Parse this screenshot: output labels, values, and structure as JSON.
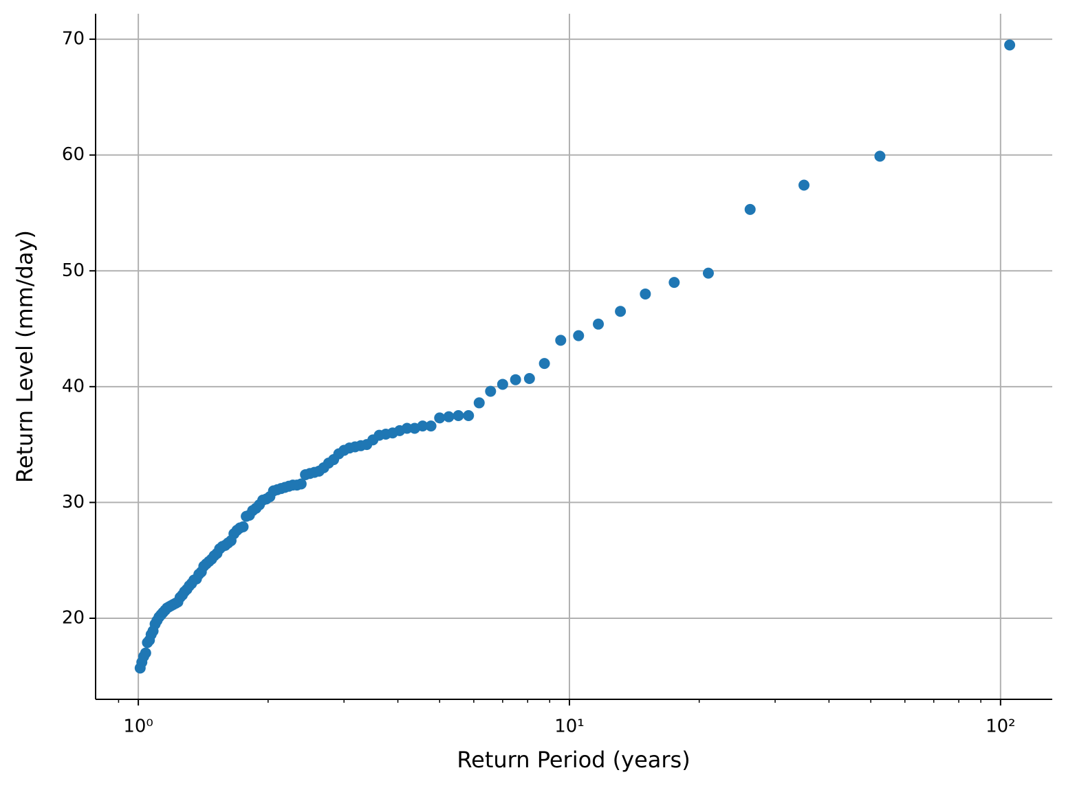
{
  "chart_data": {
    "type": "scatter",
    "xlabel": "Return Period (years)",
    "ylabel": "Return Level (mm/day)",
    "x_scale": "log",
    "grid": true,
    "color": "#1f77b4",
    "xlim": [
      0.796,
      131.8
    ],
    "ylim": [
      13.0,
      72.2
    ],
    "xticks": [
      {
        "value": 1,
        "label": "10⁰"
      },
      {
        "value": 10,
        "label": "10¹"
      },
      {
        "value": 100,
        "label": "10²"
      }
    ],
    "xminorticks": [
      0.9,
      2,
      3,
      4,
      5,
      6,
      7,
      8,
      9,
      20,
      30,
      40,
      50,
      60,
      70,
      80,
      90
    ],
    "yticks": [
      20,
      30,
      40,
      50,
      60,
      70
    ],
    "x": [
      105,
      52.5,
      35,
      26.25,
      21,
      17.5,
      15,
      13.13,
      11.67,
      10.5,
      9.545,
      8.75,
      8.077,
      7.5,
      7,
      6.563,
      6.176,
      5.833,
      5.526,
      5.25,
      5,
      4.773,
      4.565,
      4.375,
      4.2,
      4.038,
      3.889,
      3.75,
      3.621,
      3.5,
      3.387,
      3.281,
      3.182,
      3.088,
      3,
      2.917,
      2.838,
      2.763,
      2.692,
      2.625,
      2.561,
      2.5,
      2.442,
      2.386,
      2.333,
      2.283,
      2.234,
      2.188,
      2.143,
      2.1,
      2.059,
      2.019,
      1.981,
      1.944,
      1.909,
      1.875,
      1.842,
      1.81,
      1.78,
      1.75,
      1.721,
      1.694,
      1.667,
      1.641,
      1.615,
      1.591,
      1.567,
      1.544,
      1.522,
      1.5,
      1.479,
      1.458,
      1.438,
      1.419,
      1.4,
      1.382,
      1.364,
      1.346,
      1.329,
      1.313,
      1.296,
      1.28,
      1.265,
      1.25,
      1.235,
      1.221,
      1.207,
      1.193,
      1.18,
      1.167,
      1.154,
      1.141,
      1.129,
      1.117,
      1.105,
      1.094,
      1.082,
      1.071,
      1.061,
      1.05,
      1.04,
      1.029,
      1.019,
      1.01
    ],
    "values": [
      69.5,
      59.9,
      57.4,
      55.3,
      49.8,
      49.0,
      48.0,
      46.5,
      45.4,
      44.4,
      44.0,
      42.0,
      40.7,
      40.6,
      40.2,
      39.6,
      38.6,
      37.5,
      37.5,
      37.4,
      37.3,
      36.6,
      36.6,
      36.4,
      36.4,
      36.2,
      36.0,
      35.9,
      35.8,
      35.4,
      35.0,
      34.9,
      34.8,
      34.7,
      34.5,
      34.2,
      33.7,
      33.4,
      33.0,
      32.7,
      32.6,
      32.5,
      32.4,
      31.6,
      31.5,
      31.5,
      31.4,
      31.3,
      31.2,
      31.1,
      31.0,
      30.5,
      30.3,
      30.2,
      29.8,
      29.5,
      29.3,
      28.9,
      28.8,
      27.9,
      27.8,
      27.6,
      27.3,
      26.7,
      26.5,
      26.3,
      26.2,
      26.0,
      25.6,
      25.4,
      25.1,
      24.9,
      24.7,
      24.5,
      24.0,
      23.8,
      23.4,
      23.3,
      23.0,
      22.8,
      22.5,
      22.3,
      22.0,
      21.8,
      21.4,
      21.3,
      21.2,
      21.1,
      21.0,
      20.9,
      20.7,
      20.5,
      20.3,
      20.1,
      19.8,
      19.5,
      18.9,
      18.6,
      18.1,
      17.9,
      17.0,
      16.7,
      16.2,
      15.7
    ]
  }
}
